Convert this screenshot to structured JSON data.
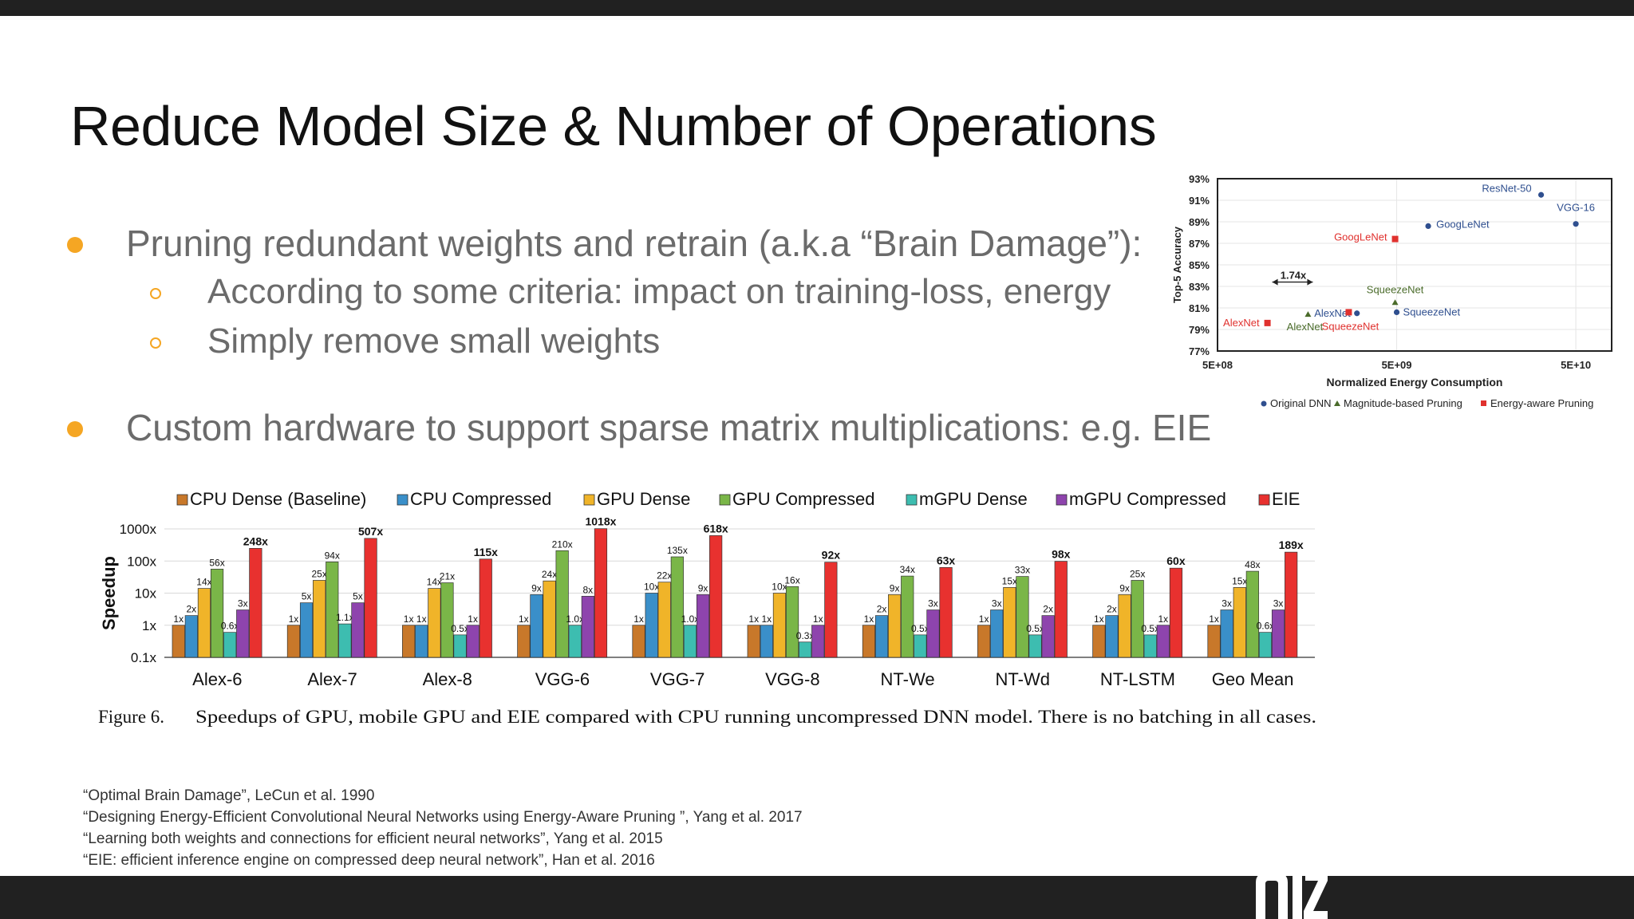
{
  "slide": {
    "title": "Reduce Model Size & Number of Operations",
    "bullets": [
      {
        "text": "Pruning redundant weights and retrain (a.k.a “Brain Damage”):",
        "subbullets": [
          "According to some criteria: impact on training-loss, energy",
          "Simply remove small weights"
        ]
      },
      {
        "text": "Custom hardware to support sparse matrix multiplications: e.g. EIE",
        "subbullets": []
      }
    ],
    "references": [
      "“Optimal Brain Damage”, LeCun et al. 1990",
      "“Designing Energy-Efficient Convolutional Neural Networks using Energy-Aware Pruning ”, Yang et al. 2017",
      "“Learning both weights and connections for efficient neural networks”, Yang et al. 2015",
      "“EIE: efficient inference engine on compressed deep neural network”, Han et al. 2016"
    ],
    "colors": {
      "bullet": "#f5a623",
      "bars": "#212121"
    }
  },
  "chart_data": [
    {
      "type": "scatter",
      "xlabel": "Normalized Energy Consumption",
      "ylabel": "Top-5 Accuracy",
      "x_scale": "log",
      "xticks": [
        "5E+08",
        "5E+09",
        "5E+10"
      ],
      "yticks": [
        "93%",
        "91%",
        "89%",
        "87%",
        "85%",
        "83%",
        "81%",
        "79%",
        "77%"
      ],
      "ylim": [
        77,
        93
      ],
      "legend": [
        "Original DNN",
        "Magnitude-based Pruning",
        "Energy-aware Pruning"
      ],
      "annotation": "1.74x",
      "series": [
        {
          "name": "Original DNN",
          "color": "#2f4f8f",
          "points": [
            {
              "label": "ResNet-50",
              "x": 32000000000.0,
              "y": 91.5
            },
            {
              "label": "VGG-16",
              "x": 50000000000.0,
              "y": 88.8
            },
            {
              "label": "GoogLeNet",
              "x": 7500000000.0,
              "y": 88.6
            },
            {
              "label": "AlexNet",
              "x": 3000000000.0,
              "y": 80.5
            },
            {
              "label": "SqueezeNet",
              "x": 5000000000.0,
              "y": 80.6
            }
          ]
        },
        {
          "name": "Magnitude-based Pruning",
          "color": "#4a6b2a",
          "points": [
            {
              "label": "AlexNet",
              "x": 1600000000.0,
              "y": 80.4
            },
            {
              "label": "SqueezeNet",
              "x": 4900000000.0,
              "y": 81.5
            }
          ]
        },
        {
          "name": "Energy-aware Pruning",
          "color": "#e0312e",
          "points": [
            {
              "label": "GoogLeNet",
              "x": 4900000000.0,
              "y": 87.4
            },
            {
              "label": "AlexNet",
              "x": 950000000.0,
              "y": 79.6
            },
            {
              "label": "SqueezeNet",
              "x": 2700000000.0,
              "y": 80.6
            }
          ]
        }
      ]
    },
    {
      "type": "bar",
      "ylabel": "Speedup",
      "y_scale": "log",
      "yticks": [
        "1000x",
        "100x",
        "10x",
        "1x",
        "0.1x"
      ],
      "ylim": [
        0.1,
        1000
      ],
      "categories": [
        "Alex-6",
        "Alex-7",
        "Alex-8",
        "VGG-6",
        "VGG-7",
        "VGG-8",
        "NT-We",
        "NT-Wd",
        "NT-LSTM",
        "Geo Mean"
      ],
      "series": [
        {
          "name": "CPU Dense (Baseline)",
          "color": "#c8782a",
          "values": [
            1,
            1,
            1,
            1,
            1,
            1,
            1,
            1,
            1,
            1
          ],
          "labels": [
            "1x",
            "1x",
            "1x",
            "1x",
            "1x",
            "1x",
            "1x",
            "1x",
            "1x",
            "1x"
          ]
        },
        {
          "name": "CPU Compressed",
          "color": "#3a8fc9",
          "values": [
            2,
            5,
            1,
            9,
            10,
            1,
            2,
            3,
            2,
            3
          ],
          "labels": [
            "2x",
            "5x",
            "1x",
            "9x",
            "10x",
            "1x",
            "2x",
            "3x",
            "2x",
            "3x"
          ]
        },
        {
          "name": "GPU Dense",
          "color": "#f0b429",
          "values": [
            14,
            25,
            14,
            24,
            22,
            10,
            9,
            15,
            9,
            15
          ],
          "labels": [
            "14x",
            "25x",
            "14x",
            "24x",
            "22x",
            "10x",
            "9x",
            "15x",
            "9x",
            "15x"
          ]
        },
        {
          "name": "GPU Compressed",
          "color": "#7ab648",
          "values": [
            56,
            94,
            21,
            210,
            135,
            16,
            34,
            33,
            25,
            48
          ],
          "labels": [
            "56x",
            "94x",
            "21x",
            "210x",
            "135x",
            "16x",
            "34x",
            "33x",
            "25x",
            "48x"
          ]
        },
        {
          "name": "mGPU Dense",
          "color": "#3dbdb0",
          "values": [
            0.6,
            1.1,
            0.5,
            1.0,
            1.0,
            0.3,
            0.5,
            0.5,
            0.5,
            0.6
          ],
          "labels": [
            "0.6x",
            "1.1x",
            "0.5x",
            "1.0x",
            "1.0x",
            "0.3x",
            "0.5x",
            "0.5x",
            "0.5x",
            "0.6x"
          ]
        },
        {
          "name": "mGPU Compressed",
          "color": "#8e44ad",
          "values": [
            3,
            5,
            1,
            8,
            9,
            1,
            3,
            2,
            1,
            3
          ],
          "labels": [
            "3x",
            "5x",
            "1x",
            "8x",
            "9x",
            "1x",
            "3x",
            "2x",
            "1x",
            "3x"
          ]
        },
        {
          "name": "EIE",
          "color": "#e8312f",
          "values": [
            248,
            507,
            115,
            1018,
            618,
            92,
            63,
            98,
            60,
            189
          ],
          "labels": [
            "248x",
            "507x",
            "115x",
            "1018x",
            "618x",
            "92x",
            "63x",
            "98x",
            "60x",
            "189x"
          ]
        }
      ],
      "caption_label": "Figure 6.",
      "caption": "Speedups of GPU, mobile GPU and EIE compared with CPU running uncompressed DNN model. There is no batching in all cases."
    }
  ]
}
